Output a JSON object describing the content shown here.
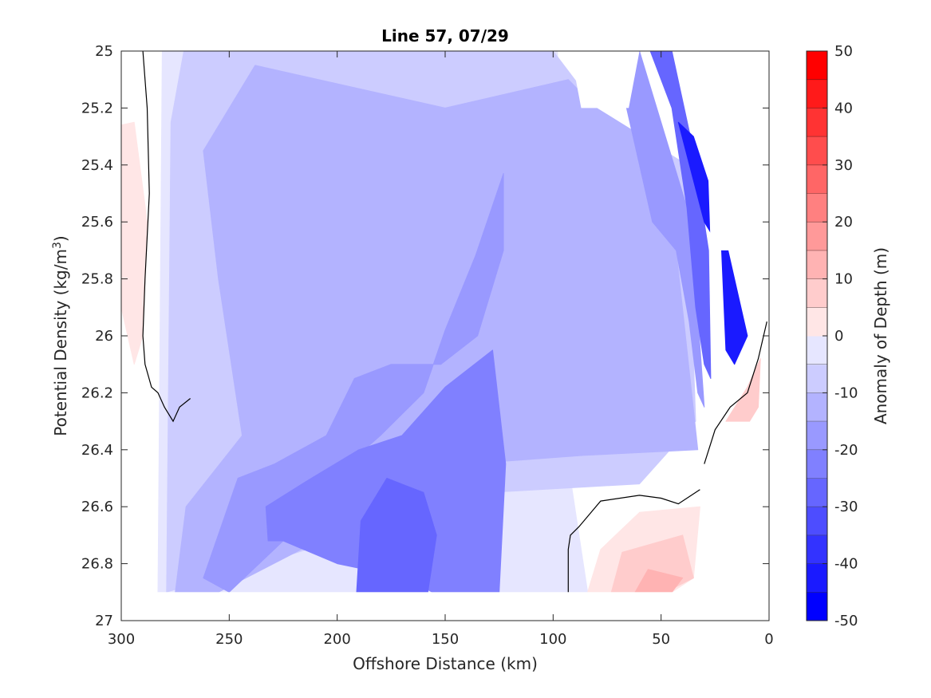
{
  "chart_data": {
    "type": "contour",
    "title": "Line 57, 07/29",
    "xlabel": "Offshore Distance (km)",
    "ylabel_main": "Potential Density (kg/m",
    "ylabel_sup": "3",
    "ylabel_close": ")",
    "x_reversed": true,
    "xlim": [
      0,
      300
    ],
    "ylim": [
      25,
      27
    ],
    "y_reversed": true,
    "x_ticks": [
      300,
      250,
      200,
      150,
      100,
      50,
      0
    ],
    "x_tick_labels": [
      "300",
      "250",
      "200",
      "150",
      "100",
      "50",
      "0"
    ],
    "y_ticks": [
      25,
      25.2,
      25.4,
      25.6,
      25.8,
      26,
      26.2,
      26.4,
      26.6,
      26.8,
      27
    ],
    "y_tick_labels": [
      "25",
      "25.2",
      "25.4",
      "25.6",
      "25.8",
      "26",
      "26.2",
      "26.4",
      "26.6",
      "26.8",
      "27"
    ],
    "colorbar": {
      "label": "Anomaly of Depth (m)",
      "lim": [
        -50,
        50
      ],
      "ticks": [
        50,
        40,
        30,
        20,
        10,
        0,
        -10,
        -20,
        -30,
        -40,
        -50
      ],
      "tick_labels": [
        "50",
        "40",
        "30",
        "20",
        "10",
        "0",
        "-10",
        "-20",
        "-30",
        "-40",
        "-50"
      ],
      "level_step": 5,
      "colors": [
        "#0000ff",
        "#1a1aff",
        "#3333ff",
        "#4d4dff",
        "#6666ff",
        "#8080ff",
        "#9999ff",
        "#b3b3ff",
        "#ccccff",
        "#e6e6ff",
        "#ffffff",
        "#ffffff",
        "#ffe6e6",
        "#ffcccc",
        "#ffb3b3",
        "#ff9999",
        "#ff8080",
        "#ff6666",
        "#ff4d4d",
        "#ff3333",
        "#ff1a1a",
        "#ff0000"
      ]
    },
    "regions": [
      {
        "level": -7.5,
        "color": "#e6e6ff",
        "points": [
          [
            283,
            26.9
          ],
          [
            281,
            25.0
          ],
          [
            98,
            25.0
          ],
          [
            92,
            26.5
          ],
          [
            84,
            26.9
          ]
        ]
      },
      {
        "level": -12.5,
        "color": "#ccccff",
        "points": [
          [
            279,
            26.9
          ],
          [
            277,
            25.25
          ],
          [
            271,
            25.0
          ],
          [
            100,
            25.0
          ],
          [
            80,
            25.2
          ],
          [
            38,
            25.4
          ],
          [
            34,
            26.3
          ],
          [
            60,
            26.52
          ],
          [
            130,
            26.55
          ],
          [
            235,
            26.8
          ]
        ]
      },
      {
        "level": -17.5,
        "color": "#b3b3ff",
        "points": [
          [
            275,
            26.9
          ],
          [
            270,
            26.6
          ],
          [
            244,
            26.35
          ],
          [
            255,
            25.8
          ],
          [
            262,
            25.35
          ],
          [
            238,
            25.05
          ],
          [
            150,
            25.2
          ],
          [
            93,
            25.1
          ],
          [
            80,
            25.2
          ],
          [
            48,
            25.35
          ],
          [
            33,
            26.4
          ],
          [
            86,
            26.42
          ],
          [
            140,
            26.45
          ],
          [
            255,
            26.9
          ]
        ]
      },
      {
        "level": -22.5,
        "color": "#9999ff",
        "points": [
          [
            262,
            26.85
          ],
          [
            246,
            26.5
          ],
          [
            229,
            26.45
          ],
          [
            205,
            26.35
          ],
          [
            192,
            26.15
          ],
          [
            175,
            26.1
          ],
          [
            152,
            26.1
          ],
          [
            135,
            26.0
          ],
          [
            123,
            25.7
          ],
          [
            123,
            25.43
          ],
          [
            136,
            25.72
          ],
          [
            150,
            25.98
          ],
          [
            160,
            26.2
          ],
          [
            180,
            26.35
          ],
          [
            195,
            26.45
          ],
          [
            216,
            26.62
          ],
          [
            225,
            26.72
          ],
          [
            250,
            26.9
          ]
        ]
      },
      {
        "level": -27.5,
        "color": "#8080ff",
        "points": [
          [
            232,
            26.72
          ],
          [
            233,
            26.6
          ],
          [
            212,
            26.5
          ],
          [
            190,
            26.4
          ],
          [
            170,
            26.35
          ],
          [
            150,
            26.18
          ],
          [
            128,
            26.05
          ],
          [
            122,
            26.45
          ],
          [
            125,
            26.9
          ],
          [
            156,
            26.9
          ],
          [
            168,
            26.85
          ],
          [
            200,
            26.8
          ],
          [
            225,
            26.72
          ]
        ]
      },
      {
        "level": -32.5,
        "color": "#6666ff",
        "points": [
          [
            191,
            26.9
          ],
          [
            189,
            26.65
          ],
          [
            177,
            26.5
          ],
          [
            160,
            26.55
          ],
          [
            154,
            26.7
          ],
          [
            158,
            26.9
          ]
        ]
      },
      {
        "level": -20,
        "color": "#9999ff",
        "points": [
          [
            84,
            25.0
          ],
          [
            66,
            25.2
          ],
          [
            60,
            25.4
          ],
          [
            54,
            25.6
          ],
          [
            43,
            25.7
          ],
          [
            37,
            25.95
          ],
          [
            33,
            26.2
          ],
          [
            30,
            26.25
          ],
          [
            36,
            25.6
          ],
          [
            48,
            25.3
          ],
          [
            60,
            25.0
          ]
        ]
      },
      {
        "level": -30,
        "color": "#6666ff",
        "points": [
          [
            55,
            25.0
          ],
          [
            45,
            25.2
          ],
          [
            38,
            25.55
          ],
          [
            34,
            25.9
          ],
          [
            30,
            26.1
          ],
          [
            27,
            26.15
          ],
          [
            28,
            25.7
          ],
          [
            35,
            25.35
          ],
          [
            45,
            25.0
          ]
        ]
      },
      {
        "level": -42.5,
        "color": "#1a1aff",
        "points": [
          [
            42,
            25.25
          ],
          [
            30,
            25.6
          ],
          [
            22,
            25.7
          ],
          [
            20,
            26.05
          ],
          [
            16,
            26.1
          ],
          [
            10,
            26.0
          ],
          [
            22,
            25.6
          ],
          [
            35,
            25.3
          ]
        ]
      },
      {
        "level": 7.5,
        "color": "#ffe6e6",
        "points": [
          [
            300,
            25.26
          ],
          [
            294,
            25.25
          ],
          [
            288,
            25.6
          ],
          [
            290,
            26.0
          ],
          [
            294,
            26.1
          ],
          [
            300,
            25.9
          ]
        ]
      },
      {
        "level": 7.5,
        "color": "#ffe6e6",
        "points": [
          [
            84,
            26.9
          ],
          [
            78,
            26.75
          ],
          [
            60,
            26.62
          ],
          [
            32,
            26.6
          ],
          [
            35,
            26.85
          ],
          [
            45,
            26.9
          ]
        ]
      },
      {
        "level": 15,
        "color": "#ffcccc",
        "points": [
          [
            73,
            26.9
          ],
          [
            68,
            26.76
          ],
          [
            40,
            26.7
          ],
          [
            35,
            26.85
          ],
          [
            48,
            26.9
          ]
        ]
      },
      {
        "level": 25,
        "color": "#ffb3b3",
        "points": [
          [
            62,
            26.9
          ],
          [
            56,
            26.82
          ],
          [
            40,
            26.85
          ],
          [
            45,
            26.9
          ]
        ]
      },
      {
        "level": 15,
        "color": "#ffcccc",
        "points": [
          [
            20,
            26.3
          ],
          [
            10,
            26.18
          ],
          [
            4,
            26.08
          ],
          [
            5,
            26.25
          ],
          [
            9,
            26.3
          ]
        ]
      }
    ],
    "zero_contours": [
      [
        [
          290,
          25.0
        ],
        [
          288,
          25.2
        ],
        [
          287,
          25.5
        ],
        [
          289,
          25.8
        ],
        [
          290,
          26.0
        ],
        [
          289,
          26.1
        ],
        [
          286,
          26.18
        ],
        [
          283,
          26.2
        ],
        [
          280,
          26.25
        ],
        [
          276,
          26.3
        ],
        [
          273,
          26.25
        ],
        [
          268,
          26.22
        ]
      ],
      [
        [
          93,
          26.9
        ],
        [
          93,
          26.75
        ],
        [
          92,
          26.7
        ],
        [
          88,
          26.67
        ],
        [
          78,
          26.58
        ],
        [
          60,
          26.56
        ],
        [
          50,
          26.57
        ],
        [
          42,
          26.59
        ],
        [
          32,
          26.54
        ]
      ],
      [
        [
          30,
          26.45
        ],
        [
          25,
          26.33
        ],
        [
          18,
          26.25
        ],
        [
          10,
          26.2
        ],
        [
          5,
          26.08
        ],
        [
          1,
          25.95
        ]
      ]
    ],
    "masked": [
      [
        [
          92,
          25.0
        ],
        [
          87,
          25.2
        ],
        [
          65,
          25.2
        ],
        [
          60,
          25.0
        ]
      ],
      [
        [
          30,
          25.0
        ],
        [
          27,
          25.7
        ],
        [
          0,
          25.7
        ],
        [
          0,
          25.0
        ]
      ]
    ],
    "data_extent": {
      "x": [
        0,
        282
      ],
      "y": [
        25,
        26.9
      ]
    }
  }
}
